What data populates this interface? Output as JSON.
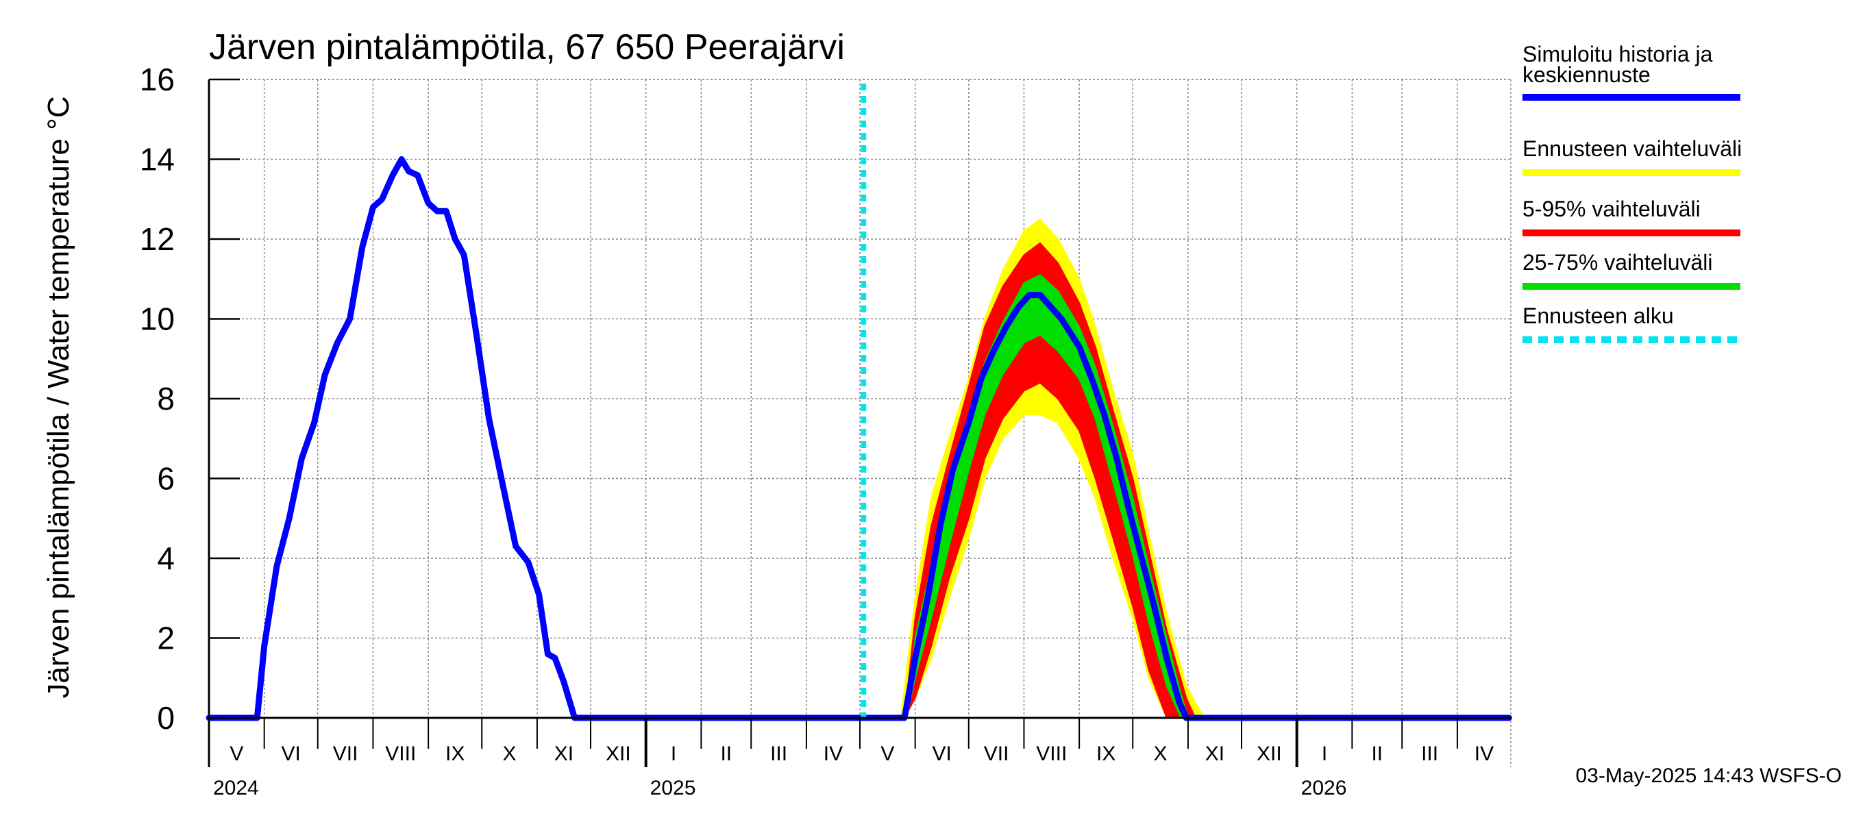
{
  "chart_data": {
    "type": "line",
    "title": "Järven pintalämpötila, 67 650 Peerajärvi",
    "ylabel": "Järven pintalämpötila / Water temperature °C",
    "xlabel": "",
    "ylim": [
      0,
      16
    ],
    "yticks": [
      0,
      2,
      4,
      6,
      8,
      10,
      12,
      14,
      16
    ],
    "grid": true,
    "x_start": "2024-05-01",
    "x_end": "2026-04-30",
    "forecast_start": "2025-05-03",
    "months": [
      {
        "label": "V",
        "start": "2024-05-01"
      },
      {
        "label": "VI",
        "start": "2024-06-01"
      },
      {
        "label": "VII",
        "start": "2024-07-01"
      },
      {
        "label": "VIII",
        "start": "2024-08-01"
      },
      {
        "label": "IX",
        "start": "2024-09-01"
      },
      {
        "label": "X",
        "start": "2024-10-01"
      },
      {
        "label": "XI",
        "start": "2024-11-01"
      },
      {
        "label": "XII",
        "start": "2024-12-01"
      },
      {
        "label": "I",
        "start": "2025-01-01"
      },
      {
        "label": "II",
        "start": "2025-02-01"
      },
      {
        "label": "III",
        "start": "2025-03-01"
      },
      {
        "label": "IV",
        "start": "2025-04-01"
      },
      {
        "label": "V",
        "start": "2025-05-01"
      },
      {
        "label": "VI",
        "start": "2025-06-01"
      },
      {
        "label": "VII",
        "start": "2025-07-01"
      },
      {
        "label": "VIII",
        "start": "2025-08-01"
      },
      {
        "label": "IX",
        "start": "2025-09-01"
      },
      {
        "label": "X",
        "start": "2025-10-01"
      },
      {
        "label": "XI",
        "start": "2025-11-01"
      },
      {
        "label": "XII",
        "start": "2025-12-01"
      },
      {
        "label": "I",
        "start": "2026-01-01"
      },
      {
        "label": "II",
        "start": "2026-02-01"
      },
      {
        "label": "III",
        "start": "2026-03-01"
      },
      {
        "label": "IV",
        "start": "2026-04-01"
      }
    ],
    "years": [
      {
        "label": "2024",
        "date": "2024-05-01"
      },
      {
        "label": "2025",
        "date": "2025-01-01"
      },
      {
        "label": "2026",
        "date": "2026-01-01"
      }
    ],
    "series": [
      {
        "name": "Simuloitu historia ja keskiennuste",
        "color": "#0000ff",
        "points": [
          [
            "2024-05-01",
            0
          ],
          [
            "2024-05-28",
            0
          ],
          [
            "2024-06-01",
            1.8
          ],
          [
            "2024-06-08",
            3.8
          ],
          [
            "2024-06-15",
            5.0
          ],
          [
            "2024-06-22",
            6.5
          ],
          [
            "2024-06-29",
            7.4
          ],
          [
            "2024-07-05",
            8.6
          ],
          [
            "2024-07-12",
            9.4
          ],
          [
            "2024-07-19",
            10.0
          ],
          [
            "2024-07-26",
            11.8
          ],
          [
            "2024-08-01",
            12.8
          ],
          [
            "2024-08-06",
            13.0
          ],
          [
            "2024-08-12",
            13.6
          ],
          [
            "2024-08-17",
            14.0
          ],
          [
            "2024-08-21",
            13.7
          ],
          [
            "2024-08-26",
            13.6
          ],
          [
            "2024-09-01",
            12.9
          ],
          [
            "2024-09-06",
            12.7
          ],
          [
            "2024-09-11",
            12.7
          ],
          [
            "2024-09-16",
            12.0
          ],
          [
            "2024-09-21",
            11.6
          ],
          [
            "2024-09-28",
            9.6
          ],
          [
            "2024-10-05",
            7.5
          ],
          [
            "2024-10-12",
            6.0
          ],
          [
            "2024-10-20",
            4.3
          ],
          [
            "2024-10-27",
            3.9
          ],
          [
            "2024-11-02",
            3.1
          ],
          [
            "2024-11-07",
            1.6
          ],
          [
            "2024-11-11",
            1.5
          ],
          [
            "2024-11-16",
            0.9
          ],
          [
            "2024-11-22",
            0
          ],
          [
            "2025-05-26",
            0
          ],
          [
            "2025-06-01",
            1.5
          ],
          [
            "2025-06-08",
            3.0
          ],
          [
            "2025-06-15",
            4.8
          ],
          [
            "2025-06-22",
            6.2
          ],
          [
            "2025-07-01",
            7.4
          ],
          [
            "2025-07-08",
            8.5
          ],
          [
            "2025-07-15",
            9.2
          ],
          [
            "2025-07-22",
            9.8
          ],
          [
            "2025-07-29",
            10.3
          ],
          [
            "2025-08-04",
            10.6
          ],
          [
            "2025-08-10",
            10.6
          ],
          [
            "2025-08-16",
            10.3
          ],
          [
            "2025-08-22",
            10.0
          ],
          [
            "2025-09-01",
            9.3
          ],
          [
            "2025-09-08",
            8.5
          ],
          [
            "2025-09-15",
            7.6
          ],
          [
            "2025-09-22",
            6.5
          ],
          [
            "2025-09-29",
            5.2
          ],
          [
            "2025-10-06",
            4.0
          ],
          [
            "2025-10-13",
            2.8
          ],
          [
            "2025-10-20",
            1.5
          ],
          [
            "2025-10-27",
            0.4
          ],
          [
            "2025-10-31",
            0
          ],
          [
            "2026-04-30",
            0
          ]
        ]
      },
      {
        "name": "Ennusteen vaihteluväli",
        "color": "#ffff00",
        "band": [
          [
            "2025-05-24",
            0,
            0
          ],
          [
            "2025-06-01",
            0.5,
            3.0
          ],
          [
            "2025-06-10",
            1.5,
            5.5
          ],
          [
            "2025-06-20",
            3.0,
            7.0
          ],
          [
            "2025-07-01",
            4.5,
            8.5
          ],
          [
            "2025-07-10",
            6.0,
            10.0
          ],
          [
            "2025-07-20",
            7.0,
            11.2
          ],
          [
            "2025-08-01",
            7.6,
            12.2
          ],
          [
            "2025-08-10",
            7.6,
            12.5
          ],
          [
            "2025-08-20",
            7.4,
            12.0
          ],
          [
            "2025-09-01",
            6.5,
            11.0
          ],
          [
            "2025-09-10",
            5.5,
            9.8
          ],
          [
            "2025-09-20",
            4.0,
            8.2
          ],
          [
            "2025-10-01",
            2.5,
            6.6
          ],
          [
            "2025-10-10",
            1.0,
            4.6
          ],
          [
            "2025-10-20",
            0,
            2.6
          ],
          [
            "2025-10-31",
            0,
            0.8
          ],
          [
            "2025-11-10",
            0,
            0
          ]
        ]
      },
      {
        "name": "5-95% vaihteluväli",
        "color": "#ff0000",
        "band": [
          [
            "2025-05-26",
            0,
            0
          ],
          [
            "2025-06-01",
            0.5,
            2.5
          ],
          [
            "2025-06-10",
            1.8,
            4.8
          ],
          [
            "2025-06-20",
            3.5,
            6.5
          ],
          [
            "2025-07-01",
            5.0,
            8.3
          ],
          [
            "2025-07-10",
            6.5,
            9.8
          ],
          [
            "2025-07-20",
            7.5,
            10.8
          ],
          [
            "2025-08-01",
            8.2,
            11.6
          ],
          [
            "2025-08-10",
            8.4,
            11.9
          ],
          [
            "2025-08-20",
            8.0,
            11.4
          ],
          [
            "2025-09-01",
            7.2,
            10.4
          ],
          [
            "2025-09-10",
            6.0,
            9.3
          ],
          [
            "2025-09-20",
            4.5,
            7.7
          ],
          [
            "2025-10-01",
            2.8,
            6.0
          ],
          [
            "2025-10-10",
            1.2,
            4.2
          ],
          [
            "2025-10-20",
            0,
            2.2
          ],
          [
            "2025-10-31",
            0,
            0.5
          ],
          [
            "2025-11-05",
            0,
            0
          ]
        ]
      },
      {
        "name": "25-75% vaihteluväli",
        "color": "#00dd00",
        "band": [
          [
            "2025-05-27",
            0,
            0
          ],
          [
            "2025-06-01",
            1.0,
            2.0
          ],
          [
            "2025-06-10",
            2.5,
            3.8
          ],
          [
            "2025-06-20",
            4.3,
            5.6
          ],
          [
            "2025-07-01",
            6.2,
            7.6
          ],
          [
            "2025-07-10",
            7.6,
            8.9
          ],
          [
            "2025-07-20",
            8.6,
            9.9
          ],
          [
            "2025-08-01",
            9.4,
            10.9
          ],
          [
            "2025-08-10",
            9.6,
            11.1
          ],
          [
            "2025-08-20",
            9.2,
            10.7
          ],
          [
            "2025-09-01",
            8.5,
            9.8
          ],
          [
            "2025-09-10",
            7.5,
            8.8
          ],
          [
            "2025-09-20",
            5.9,
            7.3
          ],
          [
            "2025-10-01",
            4.1,
            5.5
          ],
          [
            "2025-10-10",
            2.4,
            3.8
          ],
          [
            "2025-10-20",
            0.8,
            2.0
          ],
          [
            "2025-10-28",
            0,
            0.6
          ],
          [
            "2025-11-01",
            0,
            0
          ]
        ]
      },
      {
        "name": "Ennusteen alku",
        "color": "#00e5ee"
      }
    ]
  },
  "legend": {
    "placement": "right",
    "items": [
      {
        "label_line1": "Simuloitu historia ja",
        "label_line2": "keskiennuste",
        "color": "#0000ff",
        "style": "solid"
      },
      {
        "label_line1": "Ennusteen vaihteluväli",
        "label_line2": "",
        "color": "#ffff00",
        "style": "solid"
      },
      {
        "label_line1": "5-95% vaihteluväli",
        "label_line2": "",
        "color": "#ff0000",
        "style": "solid"
      },
      {
        "label_line1": "25-75% vaihteluväli",
        "label_line2": "",
        "color": "#00dd00",
        "style": "solid"
      },
      {
        "label_line1": "Ennusteen alku",
        "label_line2": "",
        "color": "#00e5ee",
        "style": "dashed"
      }
    ]
  },
  "footer": {
    "text": "03-May-2025 14:43 WSFS-O"
  }
}
